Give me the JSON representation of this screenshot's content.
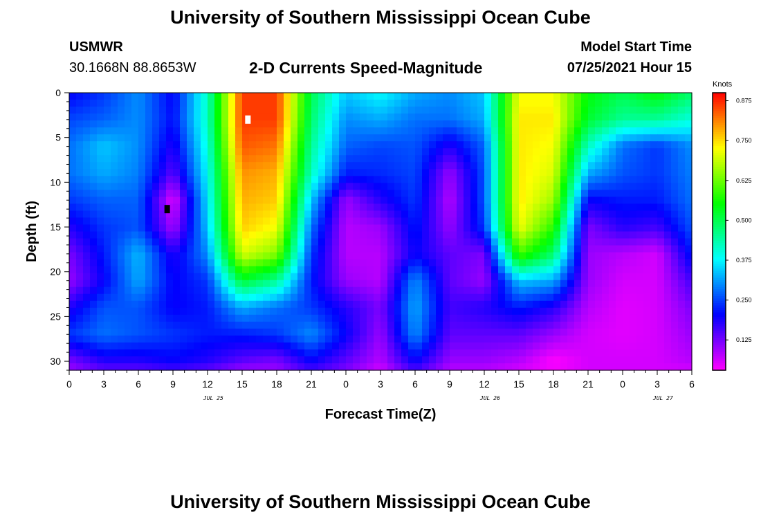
{
  "page": {
    "title_top": "University of Southern Mississippi Ocean Cube",
    "title_bottom": "University of Southern Mississippi Ocean Cube",
    "station_id": "USMWR",
    "station_coords": "30.1668N  88.8653W",
    "subtitle": "2-D Currents Speed-Magnitude",
    "model_label": "Model Start Time",
    "model_time": "07/25/2021 Hour 15"
  },
  "chart_data": {
    "type": "heatmap",
    "xlabel": "Forecast Time(Z)",
    "ylabel": "Depth (ft)",
    "colorbar_title": "Knots",
    "x_ticks": [
      "0",
      "3",
      "6",
      "9",
      "12",
      "15",
      "18",
      "21",
      "0",
      "3",
      "6",
      "9",
      "12",
      "15",
      "18",
      "21",
      "0",
      "3",
      "6"
    ],
    "x_range_hours": [
      0,
      54
    ],
    "day_labels": [
      {
        "text": "JUL 25",
        "hour": 12.5
      },
      {
        "text": "JUL 26",
        "hour": 36.5
      },
      {
        "text": "JUL 27",
        "hour": 51.5
      }
    ],
    "y_ticks": [
      "0",
      "5",
      "10",
      "15",
      "20",
      "25",
      "30"
    ],
    "y_range": [
      0,
      31
    ],
    "colorbar_ticks": [
      "0.125",
      "0.250",
      "0.375",
      "0.500",
      "0.625",
      "0.750",
      "0.875"
    ],
    "colorbar_range": [
      0.03,
      0.9
    ],
    "colors": {
      "scale": [
        "#ff00ff",
        "#8000ff",
        "#0000ff",
        "#0080ff",
        "#00ffff",
        "#00ff80",
        "#00ff00",
        "#80ff00",
        "#ffff00",
        "#ff8000",
        "#ff0000"
      ]
    },
    "speed_field_hours": [
      0,
      3,
      6,
      9,
      12,
      15,
      18,
      21,
      24,
      27,
      30,
      33,
      36,
      39,
      42,
      45,
      48,
      51,
      54
    ],
    "speed_field_depths": [
      0,
      3,
      6,
      9,
      12,
      15,
      18,
      21,
      24,
      27,
      30,
      31
    ],
    "speed_field": [
      [
        0.2,
        0.24,
        0.3,
        0.2,
        0.42,
        0.86,
        0.86,
        0.5,
        0.34,
        0.38,
        0.32,
        0.3,
        0.34,
        0.72,
        0.72,
        0.55,
        0.5,
        0.55,
        0.48
      ],
      [
        0.25,
        0.27,
        0.3,
        0.21,
        0.42,
        0.86,
        0.86,
        0.48,
        0.3,
        0.32,
        0.28,
        0.28,
        0.32,
        0.74,
        0.74,
        0.52,
        0.45,
        0.45,
        0.4
      ],
      [
        0.28,
        0.34,
        0.3,
        0.18,
        0.4,
        0.84,
        0.82,
        0.45,
        0.27,
        0.25,
        0.26,
        0.18,
        0.27,
        0.74,
        0.72,
        0.42,
        0.28,
        0.24,
        0.3
      ],
      [
        0.28,
        0.32,
        0.29,
        0.14,
        0.38,
        0.8,
        0.78,
        0.42,
        0.22,
        0.23,
        0.25,
        0.1,
        0.26,
        0.74,
        0.7,
        0.32,
        0.26,
        0.24,
        0.29
      ],
      [
        0.24,
        0.27,
        0.27,
        0.05,
        0.36,
        0.78,
        0.76,
        0.34,
        0.1,
        0.18,
        0.24,
        0.08,
        0.26,
        0.74,
        0.66,
        0.2,
        0.22,
        0.22,
        0.28
      ],
      [
        0.18,
        0.24,
        0.26,
        0.09,
        0.34,
        0.76,
        0.72,
        0.28,
        0.08,
        0.1,
        0.22,
        0.1,
        0.24,
        0.72,
        0.58,
        0.12,
        0.18,
        0.16,
        0.26
      ],
      [
        0.12,
        0.22,
        0.33,
        0.18,
        0.3,
        0.7,
        0.64,
        0.24,
        0.08,
        0.08,
        0.2,
        0.14,
        0.12,
        0.6,
        0.48,
        0.1,
        0.08,
        0.06,
        0.22
      ],
      [
        0.1,
        0.2,
        0.32,
        0.2,
        0.24,
        0.52,
        0.45,
        0.22,
        0.1,
        0.08,
        0.3,
        0.14,
        0.1,
        0.34,
        0.32,
        0.1,
        0.06,
        0.06,
        0.16
      ],
      [
        0.18,
        0.26,
        0.26,
        0.2,
        0.22,
        0.32,
        0.28,
        0.24,
        0.18,
        0.12,
        0.32,
        0.16,
        0.18,
        0.22,
        0.18,
        0.08,
        0.05,
        0.06,
        0.12
      ],
      [
        0.24,
        0.28,
        0.26,
        0.24,
        0.22,
        0.22,
        0.24,
        0.3,
        0.2,
        0.1,
        0.3,
        0.14,
        0.14,
        0.14,
        0.1,
        0.06,
        0.05,
        0.06,
        0.1
      ],
      [
        0.12,
        0.18,
        0.18,
        0.2,
        0.18,
        0.14,
        0.12,
        0.2,
        0.14,
        0.08,
        0.2,
        0.1,
        0.1,
        0.08,
        0.03,
        0.06,
        0.06,
        0.06,
        0.08
      ],
      [
        0.1,
        0.14,
        0.14,
        0.16,
        0.14,
        0.1,
        0.1,
        0.16,
        0.12,
        0.06,
        0.16,
        0.08,
        0.08,
        0.06,
        0.04,
        0.06,
        0.06,
        0.06,
        0.06
      ]
    ],
    "markers": [
      {
        "name": "max-marker",
        "hour": 15.5,
        "depth": 3,
        "color": "#ffffff"
      },
      {
        "name": "min-marker",
        "hour": 8.5,
        "depth": 13,
        "color": "#000000"
      }
    ]
  }
}
